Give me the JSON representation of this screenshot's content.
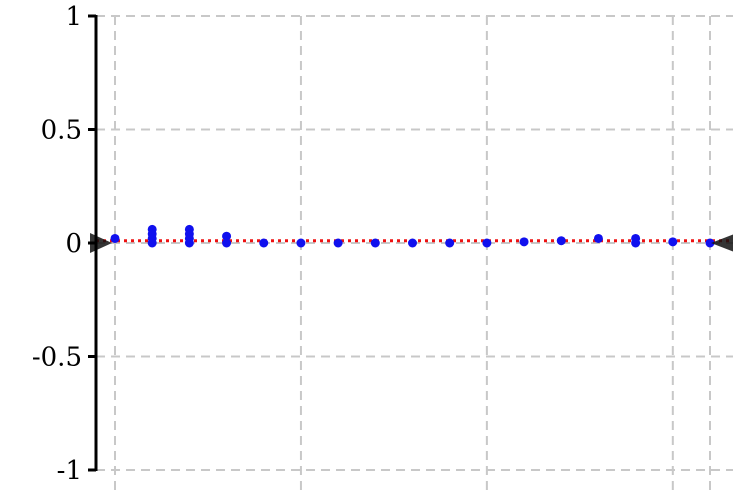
{
  "chart_data": {
    "type": "scatter",
    "title": "",
    "xlabel": "",
    "ylabel": "",
    "ylim": [
      -1,
      1
    ],
    "xlim": [
      -0.5,
      16.5
    ],
    "yticks": [
      {
        "value": 1,
        "label": "1"
      },
      {
        "value": 0.5,
        "label": "0.5"
      },
      {
        "value": 0,
        "label": "0"
      },
      {
        "value": -0.5,
        "label": "-0.5"
      },
      {
        "value": -1,
        "label": "-1"
      }
    ],
    "x_gridlines": [
      0,
      5,
      10,
      15,
      16
    ],
    "grid": true,
    "colors": {
      "axis": "#000000",
      "grid": "#c8c8c8",
      "points": "#1010ee",
      "reference_line": "#ee1111",
      "marker": "#111111"
    },
    "series": [
      {
        "points": [
          {
            "x": 0,
            "y": 0.02
          },
          {
            "x": 1,
            "y": 0.06
          },
          {
            "x": 1,
            "y": 0.04
          },
          {
            "x": 1,
            "y": 0.02
          },
          {
            "x": 1,
            "y": 0.0
          },
          {
            "x": 2,
            "y": 0.06
          },
          {
            "x": 2,
            "y": 0.04
          },
          {
            "x": 2,
            "y": 0.02
          },
          {
            "x": 2,
            "y": 0.0
          },
          {
            "x": 3,
            "y": 0.03
          },
          {
            "x": 3,
            "y": 0.0
          },
          {
            "x": 4,
            "y": 0.0
          },
          {
            "x": 5,
            "y": 0.0
          },
          {
            "x": 6,
            "y": 0.0
          },
          {
            "x": 7,
            "y": 0.0
          },
          {
            "x": 8,
            "y": 0.0
          },
          {
            "x": 9,
            "y": 0.0
          },
          {
            "x": 10,
            "y": 0.0
          },
          {
            "x": 11,
            "y": 0.005
          },
          {
            "x": 12,
            "y": 0.01
          },
          {
            "x": 13,
            "y": 0.02
          },
          {
            "x": 14,
            "y": 0.02
          },
          {
            "x": 14,
            "y": 0.0
          },
          {
            "x": 15,
            "y": 0.005
          },
          {
            "x": 16,
            "y": 0.0
          }
        ]
      }
    ],
    "reference_line": {
      "y": 0.01,
      "style": "dotted"
    }
  }
}
